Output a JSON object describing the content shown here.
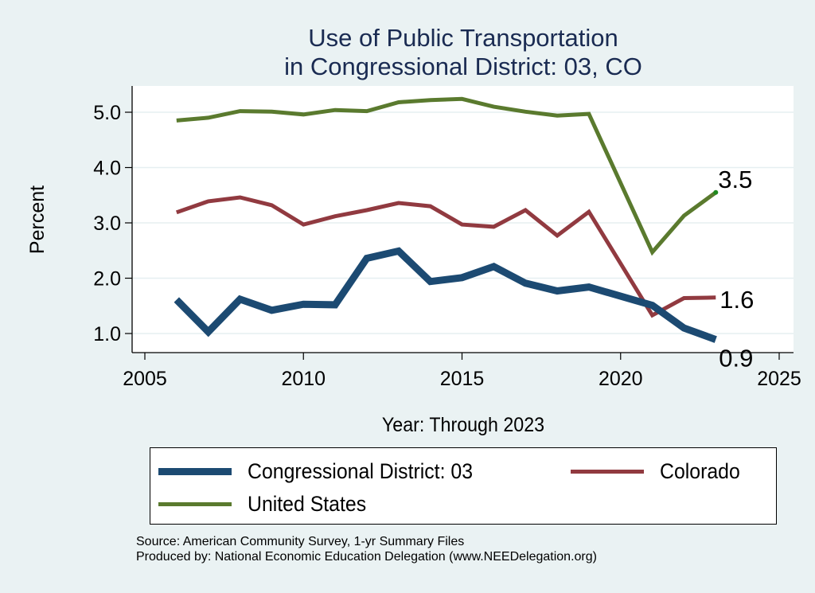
{
  "chart_data": {
    "type": "line",
    "title": "Use of Public Transportation",
    "subtitle": "in Congressional District: 03, CO",
    "xlabel": "Year: Through 2023",
    "ylabel": "Percent",
    "xlim": [
      2005,
      2025
    ],
    "ylim": [
      0.7,
      5.4
    ],
    "xticks": [
      2005,
      2010,
      2015,
      2020,
      2025
    ],
    "yticks": [
      1.0,
      2.0,
      3.0,
      4.0,
      5.0
    ],
    "ytick_labels": [
      "1.0",
      "2.0",
      "3.0",
      "4.0",
      "5.0"
    ],
    "grid": true,
    "legend_position": "bottom",
    "x": [
      2006,
      2007,
      2008,
      2009,
      2010,
      2011,
      2012,
      2013,
      2014,
      2015,
      2016,
      2017,
      2018,
      2019,
      2021,
      2022,
      2023
    ],
    "series": [
      {
        "name": "Congressional District: 03",
        "color": "#1c4a72",
        "values": [
          1.61,
          1.03,
          1.62,
          1.42,
          1.53,
          1.52,
          2.36,
          2.49,
          1.94,
          2.01,
          2.21,
          1.91,
          1.77,
          1.84,
          1.51,
          1.1,
          0.89
        ],
        "end_label": "0.9"
      },
      {
        "name": "Colorado",
        "color": "#913a40",
        "values": [
          3.19,
          3.39,
          3.46,
          3.32,
          2.97,
          3.12,
          3.23,
          3.36,
          3.3,
          2.97,
          2.93,
          3.23,
          2.77,
          3.2,
          1.33,
          1.64,
          1.65
        ],
        "end_label": "1.6"
      },
      {
        "name": "United States",
        "color": "#5a7a2e",
        "values": [
          4.85,
          4.9,
          5.02,
          5.01,
          4.96,
          5.04,
          5.02,
          5.18,
          5.22,
          5.24,
          5.1,
          5.01,
          4.94,
          4.97,
          2.47,
          3.13,
          3.55
        ],
        "end_label": "3.5"
      }
    ]
  },
  "legend": {
    "items": [
      {
        "label": "Congressional District: 03",
        "color": "#1c4a72"
      },
      {
        "label": "Colorado",
        "color": "#913a40"
      },
      {
        "label": "United States",
        "color": "#5a7a2e"
      }
    ]
  },
  "notes": {
    "source": "Source: American Community Survey, 1-yr Summary Files",
    "produced_by": "Produced by: National Economic Education Delegation (www.NEEDelegation.org)"
  }
}
